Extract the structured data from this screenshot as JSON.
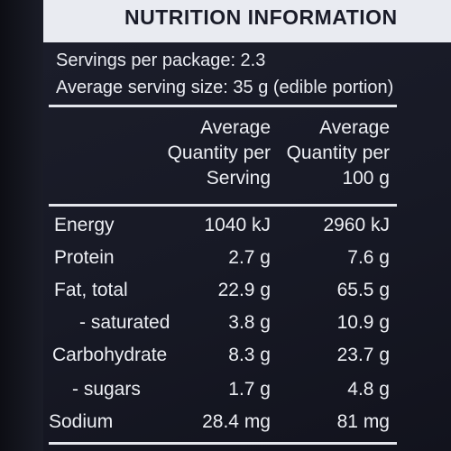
{
  "title": "NUTRITION INFORMATION",
  "servings_per_package": "Servings per package: 2.3",
  "serving_size": "Average serving size: 35 g (edible portion)",
  "column_headers": {
    "per_serving": [
      "Average",
      "Quantity per",
      "Serving"
    ],
    "per_100g": [
      "Average",
      "Quantity per",
      "100 g"
    ]
  },
  "rows": [
    {
      "nutrient": "Energy",
      "per_serving": "1040 kJ",
      "per_100g": "2960 kJ"
    },
    {
      "nutrient": "Protein",
      "per_serving": "2.7 g",
      "per_100g": "7.6 g"
    },
    {
      "nutrient": "Fat, total",
      "per_serving": "22.9 g",
      "per_100g": "65.5 g"
    },
    {
      "nutrient": "- saturated",
      "per_serving": "3.8 g",
      "per_100g": "10.9 g"
    },
    {
      "nutrient": "Carbohydrate",
      "per_serving": "8.3 g",
      "per_100g": "23.7 g"
    },
    {
      "nutrient": "- sugars",
      "per_serving": "1.7 g",
      "per_100g": "4.8 g"
    },
    {
      "nutrient": "Sodium",
      "per_serving": "28.4 mg",
      "per_100g": "81 mg"
    }
  ],
  "colors": {
    "background": "#181a26",
    "text": "#eceef3",
    "title_bar": "#e9ebf1",
    "title_text": "#1a1c29"
  }
}
